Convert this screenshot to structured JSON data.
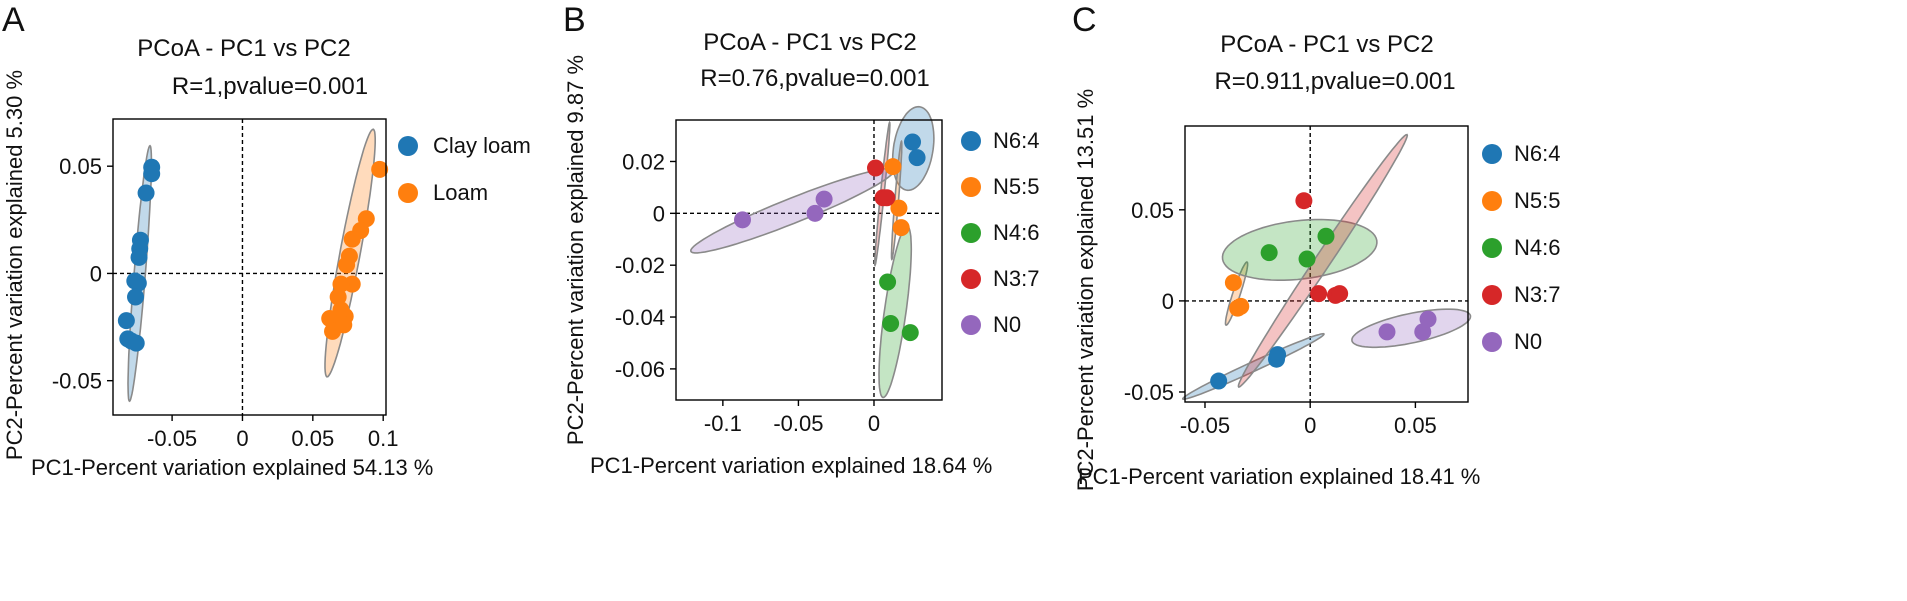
{
  "colors": {
    "clay_loam": "#1f77b4",
    "loam": "#ff7f0e",
    "N6:4": "#1f77b4",
    "N5:5": "#ff7f0e",
    "N4:6": "#2ca02c",
    "N3:7": "#d62728",
    "N0": "#9467bd"
  },
  "chart_data": [
    {
      "id": "A",
      "panel_label": "A",
      "type": "scatter",
      "title": "PCoA - PC1 vs PC2",
      "stat": "R=1,pvalue=0.001",
      "xlabel": "PC1-Percent variation explained 54.13 %",
      "ylabel": "PC2-Percent variation explained 5.30 %",
      "xlim": [
        -0.092,
        0.102
      ],
      "ylim": [
        -0.066,
        0.072
      ],
      "xticks": [
        -0.05,
        0,
        0.05,
        0.1
      ],
      "xtick_labels": [
        "-0.05",
        "0",
        "0.05",
        "0.1"
      ],
      "yticks": [
        -0.05,
        0,
        0.05
      ],
      "ytick_labels": [
        "-0.05",
        "0",
        "0.05"
      ],
      "legend": [
        "Clay loam",
        "Loam"
      ],
      "series": [
        {
          "name": "Clay loam",
          "color_key": "clay_loam",
          "points": [
            [
              -0.0645,
              0.0495
            ],
            [
              -0.0645,
              0.0465
            ],
            [
              -0.0685,
              0.0375
            ],
            [
              -0.0725,
              0.0155
            ],
            [
              -0.073,
              0.0115
            ],
            [
              -0.0735,
              0.0075
            ],
            [
              -0.0765,
              -0.0035
            ],
            [
              -0.074,
              -0.0045
            ],
            [
              -0.076,
              -0.011
            ],
            [
              -0.0825,
              -0.022
            ],
            [
              -0.0815,
              -0.0305
            ],
            [
              -0.079,
              -0.0315
            ],
            [
              -0.0755,
              -0.0325
            ]
          ],
          "ellipse": {
            "cx": -0.073,
            "cy": 0.0,
            "major": 0.06,
            "minor": 0.004,
            "angle_deg": 83
          }
        },
        {
          "name": "Loam",
          "color_key": "loam",
          "points": [
            [
              0.0975,
              0.0485
            ],
            [
              0.088,
              0.0255
            ],
            [
              0.084,
              0.02
            ],
            [
              0.078,
              0.016
            ],
            [
              0.076,
              0.008
            ],
            [
              0.074,
              0.004
            ],
            [
              0.078,
              -0.005
            ],
            [
              0.07,
              -0.005
            ],
            [
              0.068,
              -0.011
            ],
            [
              0.07,
              -0.017
            ],
            [
              0.073,
              -0.02
            ],
            [
              0.062,
              -0.021
            ],
            [
              0.064,
              -0.027
            ],
            [
              0.072,
              -0.024
            ]
          ],
          "ellipse": {
            "cx": 0.0765,
            "cy": 0.0095,
            "major": 0.06,
            "minor": 0.007,
            "angle_deg": 74
          }
        }
      ]
    },
    {
      "id": "B",
      "panel_label": "B",
      "type": "scatter",
      "title": "PCoA - PC1 vs PC2",
      "stat": "R=0.76,pvalue=0.001",
      "xlabel": "PC1-Percent variation explained 18.64 %",
      "ylabel": "PC2-Percent variation explained 9.87 %",
      "xlim": [
        -0.131,
        0.045
      ],
      "ylim": [
        -0.072,
        0.036
      ],
      "xticks": [
        -0.1,
        -0.05,
        0
      ],
      "xtick_labels": [
        "-0.1",
        "-0.05",
        "0"
      ],
      "yticks": [
        0.02,
        0,
        -0.02,
        -0.04,
        -0.06
      ],
      "ytick_labels": [
        "0.02",
        "0",
        "-0.02",
        "-0.04",
        "-0.06"
      ],
      "legend": [
        "N6:4",
        "N5:5",
        "N4:6",
        "N3:7",
        "N0"
      ],
      "series": [
        {
          "name": "N6:4",
          "color_key": "N6:4",
          "points": [
            [
              0.0255,
              0.0275
            ],
            [
              0.0285,
              0.0215
            ]
          ],
          "ellipse": {
            "cx": 0.026,
            "cy": 0.025,
            "major": 0.017,
            "minor": 0.0125,
            "angle_deg": 62
          }
        },
        {
          "name": "N5:5",
          "color_key": "N5:5",
          "points": [
            [
              0.0125,
              0.018
            ],
            [
              0.0165,
              0.002
            ],
            [
              0.018,
              -0.0055
            ]
          ],
          "ellipse": {
            "cx": 0.015,
            "cy": 0.005,
            "major": 0.023,
            "minor": 0.0012,
            "angle_deg": 82
          }
        },
        {
          "name": "N4:6",
          "color_key": "N4:6",
          "points": [
            [
              0.009,
              -0.0265
            ],
            [
              0.011,
              -0.0425
            ],
            [
              0.024,
              -0.046
            ]
          ],
          "ellipse": {
            "cx": 0.014,
            "cy": -0.038,
            "major": 0.034,
            "minor": 0.007,
            "angle_deg": 76
          }
        },
        {
          "name": "N3:7",
          "color_key": "N3:7",
          "points": [
            [
              0.001,
              0.0175
            ],
            [
              0.006,
              0.006
            ],
            [
              0.0085,
              0.006
            ]
          ],
          "ellipse": {
            "cx": 0.0055,
            "cy": 0.0075,
            "major": 0.028,
            "minor": 0.0012,
            "angle_deg": 80
          }
        },
        {
          "name": "N0",
          "color_key": "N0",
          "points": [
            [
              -0.087,
              -0.0025
            ],
            [
              -0.039,
              0.0
            ],
            [
              -0.033,
              0.0055
            ]
          ],
          "ellipse": {
            "cx": -0.054,
            "cy": 0.001,
            "major": 0.069,
            "minor": 0.005,
            "angle_deg": 13
          }
        }
      ]
    },
    {
      "id": "C",
      "panel_label": "C",
      "type": "scatter",
      "title": "PCoA - PC1 vs PC2",
      "stat": "R=0.911,pvalue=0.001",
      "xlabel": "PC1-Percent variation explained 18.41 %",
      "ylabel": "PC2-Percent variation explained 13.51 %",
      "xlim": [
        -0.0595,
        0.075
      ],
      "ylim": [
        -0.0555,
        0.096
      ],
      "xticks": [
        -0.05,
        0,
        0.05
      ],
      "xtick_labels": [
        "-0.05",
        "0",
        "0.05"
      ],
      "yticks": [
        0.05,
        0,
        -0.05
      ],
      "ytick_labels": [
        "0.05",
        "0",
        "-0.05"
      ],
      "legend": [
        "N6:4",
        "N5:5",
        "N4:6",
        "N3:7",
        "N0"
      ],
      "series": [
        {
          "name": "N6:4",
          "color_key": "N6:4",
          "points": [
            [
              -0.0435,
              -0.044
            ],
            [
              -0.016,
              -0.032
            ],
            [
              -0.0155,
              -0.0295
            ]
          ],
          "ellipse": {
            "cx": -0.027,
            "cy": -0.036,
            "major": 0.038,
            "minor": 0.0025,
            "angle_deg": 28
          }
        },
        {
          "name": "N5:5",
          "color_key": "N5:5",
          "points": [
            [
              -0.0365,
              0.01
            ],
            [
              -0.0345,
              -0.004
            ],
            [
              -0.033,
              -0.003
            ]
          ],
          "ellipse": {
            "cx": -0.035,
            "cy": 0.004,
            "major": 0.018,
            "minor": 0.0018,
            "angle_deg": 74
          }
        },
        {
          "name": "N4:6",
          "color_key": "N4:6",
          "points": [
            [
              -0.0195,
              0.0265
            ],
            [
              -0.0015,
              0.023
            ],
            [
              0.0075,
              0.0355
            ]
          ],
          "ellipse": {
            "cx": -0.005,
            "cy": 0.028,
            "major": 0.037,
            "minor": 0.016,
            "angle_deg": 8
          }
        },
        {
          "name": "N3:7",
          "color_key": "N3:7",
          "points": [
            [
              -0.003,
              0.055
            ],
            [
              0.004,
              0.004
            ],
            [
              0.012,
              0.003
            ],
            [
              0.014,
              0.004
            ]
          ],
          "ellipse": {
            "cx": 0.006,
            "cy": 0.022,
            "major": 0.08,
            "minor": 0.0038,
            "angle_deg": 60
          }
        },
        {
          "name": "N0",
          "color_key": "N0",
          "points": [
            [
              0.0365,
              -0.017
            ],
            [
              0.0535,
              -0.017
            ],
            [
              0.056,
              -0.01
            ]
          ],
          "ellipse": {
            "cx": 0.048,
            "cy": -0.015,
            "major": 0.029,
            "minor": 0.008,
            "angle_deg": 14
          }
        }
      ]
    }
  ]
}
